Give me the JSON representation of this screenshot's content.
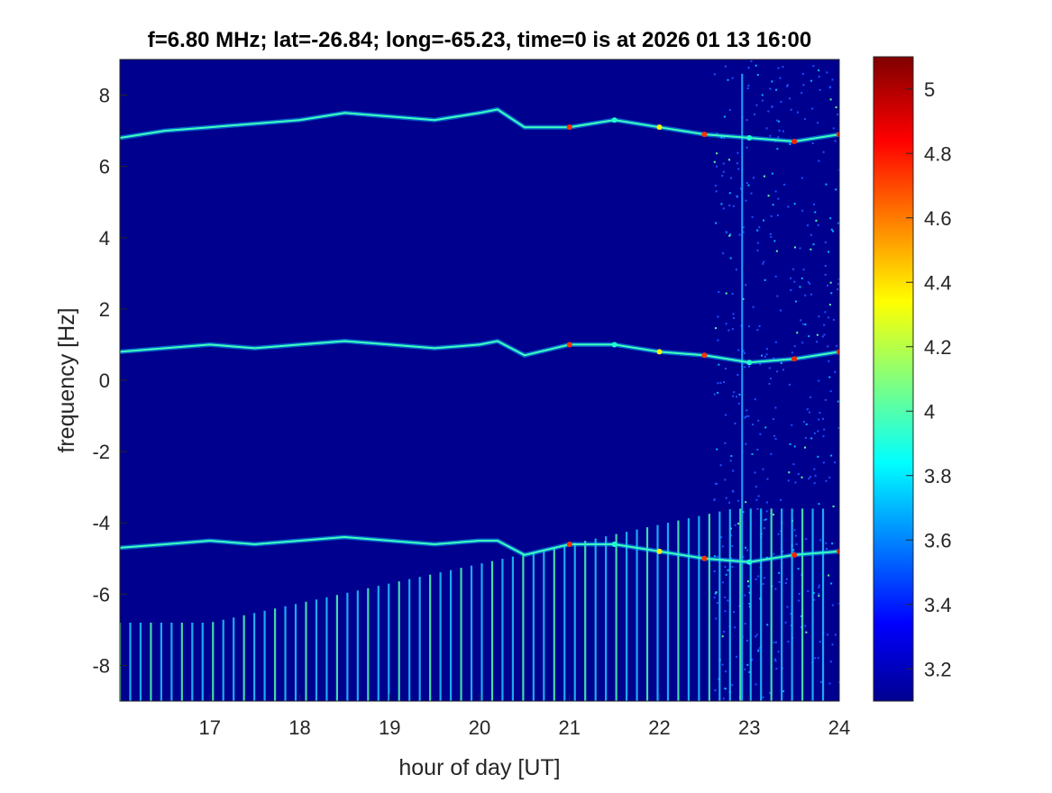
{
  "chart_data": {
    "type": "heatmap",
    "title": "f=6.80 MHz;  lat=-26.84; long=-65.23, time=0 is at 2026 01 13 16:00",
    "xlabel": "hour of day [UT]",
    "ylabel": "frequency [Hz]",
    "xlim": [
      16,
      24
    ],
    "ylim": [
      -9,
      9
    ],
    "x_ticks": [
      17,
      18,
      19,
      20,
      21,
      22,
      23,
      24
    ],
    "y_ticks": [
      8,
      6,
      4,
      2,
      0,
      -2,
      -4,
      -6,
      -8
    ],
    "colorbar": {
      "colormap": "jet",
      "range": [
        3.1,
        5.1
      ],
      "ticks": [
        5,
        4.8,
        4.6,
        4.4,
        4.2,
        4,
        3.8,
        3.6,
        3.4,
        3.2
      ]
    },
    "traces": [
      {
        "name": "",
        "x": [
          16.0,
          16.5,
          17.0,
          17.5,
          18.0,
          18.5,
          19.0,
          19.5,
          20.0,
          20.2,
          20.5,
          21.0,
          21.5,
          22.0,
          22.5,
          23.0,
          23.5,
          24.0
        ],
        "y": [
          6.8,
          7.0,
          7.1,
          7.2,
          7.3,
          7.5,
          7.4,
          7.3,
          7.5,
          7.6,
          7.1,
          7.1,
          7.3,
          7.1,
          6.9,
          6.8,
          6.7,
          6.9
        ]
      },
      {
        "name": "",
        "x": [
          16.0,
          16.5,
          17.0,
          17.5,
          18.0,
          18.5,
          19.0,
          19.5,
          20.0,
          20.2,
          20.5,
          21.0,
          21.5,
          22.0,
          22.5,
          23.0,
          23.5,
          24.0
        ],
        "y": [
          0.8,
          0.9,
          1.0,
          0.9,
          1.0,
          1.1,
          1.0,
          0.9,
          1.0,
          1.1,
          0.7,
          1.0,
          1.0,
          0.8,
          0.7,
          0.5,
          0.6,
          0.8
        ]
      },
      {
        "name": "",
        "x": [
          16.0,
          16.5,
          17.0,
          17.5,
          18.0,
          18.5,
          19.0,
          19.5,
          20.0,
          20.2,
          20.5,
          21.0,
          21.5,
          22.0,
          22.5,
          23.0,
          23.5,
          24.0
        ],
        "y": [
          -4.7,
          -4.6,
          -4.5,
          -4.6,
          -4.5,
          -4.4,
          -4.5,
          -4.6,
          -4.5,
          -4.5,
          -4.9,
          -4.6,
          -4.6,
          -4.8,
          -5.0,
          -5.1,
          -4.9,
          -4.8
        ]
      }
    ],
    "note_pulses_start_hour": 16.0,
    "pulse_spacing_hours": 0.115
  }
}
